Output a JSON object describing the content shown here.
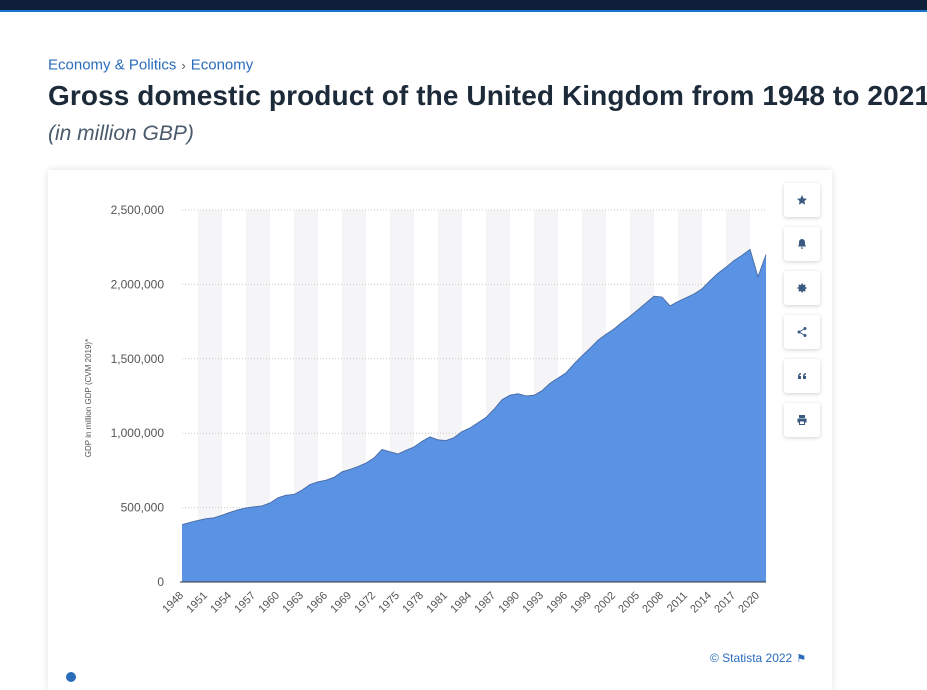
{
  "breadcrumb": {
    "item1": "Economy & Politics",
    "separator": "›",
    "item2": "Economy"
  },
  "title": "Gross domestic product of the United Kingdom from 1948 to 2021",
  "subtitle": "(in million GBP)",
  "credit": "© Statista 2022",
  "tools": [
    "star-icon",
    "bell-icon",
    "gear-icon",
    "share-icon",
    "quote-icon",
    "print-icon"
  ],
  "colors": {
    "area": "#5b93e4",
    "line": "#4a6ea8",
    "band": "#f5f5f7",
    "accent": "#2b6dbb",
    "topbar": "#0e1f39"
  },
  "chart_data": {
    "type": "area",
    "title": "Gross domestic product of the United Kingdom from 1948 to 2021",
    "ylabel": "GDP in million GDP (CVM 2019)*",
    "xlabel": "",
    "ylim": [
      0,
      2500000
    ],
    "yticks": [
      0,
      500000,
      1000000,
      1500000,
      2000000,
      2500000
    ],
    "ytick_labels": [
      "0",
      "500,000",
      "1,000,000",
      "1,500,000",
      "2,000,000",
      "2,500,000"
    ],
    "xtick_labels": [
      "1948",
      "1951",
      "1954",
      "1957",
      "1960",
      "1963",
      "1966",
      "1969",
      "1972",
      "1975",
      "1978",
      "1981",
      "1984",
      "1987",
      "1990",
      "1993",
      "1996",
      "1999",
      "2002",
      "2005",
      "2008",
      "2011",
      "2014",
      "2017",
      "2020"
    ],
    "grid": true,
    "x": [
      1948,
      1949,
      1950,
      1951,
      1952,
      1953,
      1954,
      1955,
      1956,
      1957,
      1958,
      1959,
      1960,
      1961,
      1962,
      1963,
      1964,
      1965,
      1966,
      1967,
      1968,
      1969,
      1970,
      1971,
      1972,
      1973,
      1974,
      1975,
      1976,
      1977,
      1978,
      1979,
      1980,
      1981,
      1982,
      1983,
      1984,
      1985,
      1986,
      1987,
      1988,
      1989,
      1990,
      1991,
      1992,
      1993,
      1994,
      1995,
      1996,
      1997,
      1998,
      1999,
      2000,
      2001,
      2002,
      2003,
      2004,
      2005,
      2006,
      2007,
      2008,
      2009,
      2010,
      2011,
      2012,
      2013,
      2014,
      2015,
      2016,
      2017,
      2018,
      2019,
      2020,
      2021
    ],
    "values": [
      385000,
      400000,
      413000,
      425000,
      431000,
      449000,
      468000,
      485000,
      497000,
      505000,
      511000,
      531000,
      566000,
      583000,
      588000,
      617000,
      655000,
      673000,
      684000,
      703000,
      740000,
      756000,
      776000,
      799000,
      833000,
      890000,
      875000,
      860000,
      885000,
      907000,
      945000,
      975000,
      955000,
      950000,
      970000,
      1010000,
      1035000,
      1070000,
      1105000,
      1160000,
      1225000,
      1255000,
      1265000,
      1250000,
      1255000,
      1285000,
      1335000,
      1370000,
      1405000,
      1465000,
      1520000,
      1570000,
      1625000,
      1665000,
      1700000,
      1745000,
      1785000,
      1830000,
      1875000,
      1920000,
      1915000,
      1855000,
      1885000,
      1910000,
      1935000,
      1970000,
      2025000,
      2075000,
      2115000,
      2160000,
      2195000,
      2235000,
      2050000,
      2200000
    ]
  }
}
